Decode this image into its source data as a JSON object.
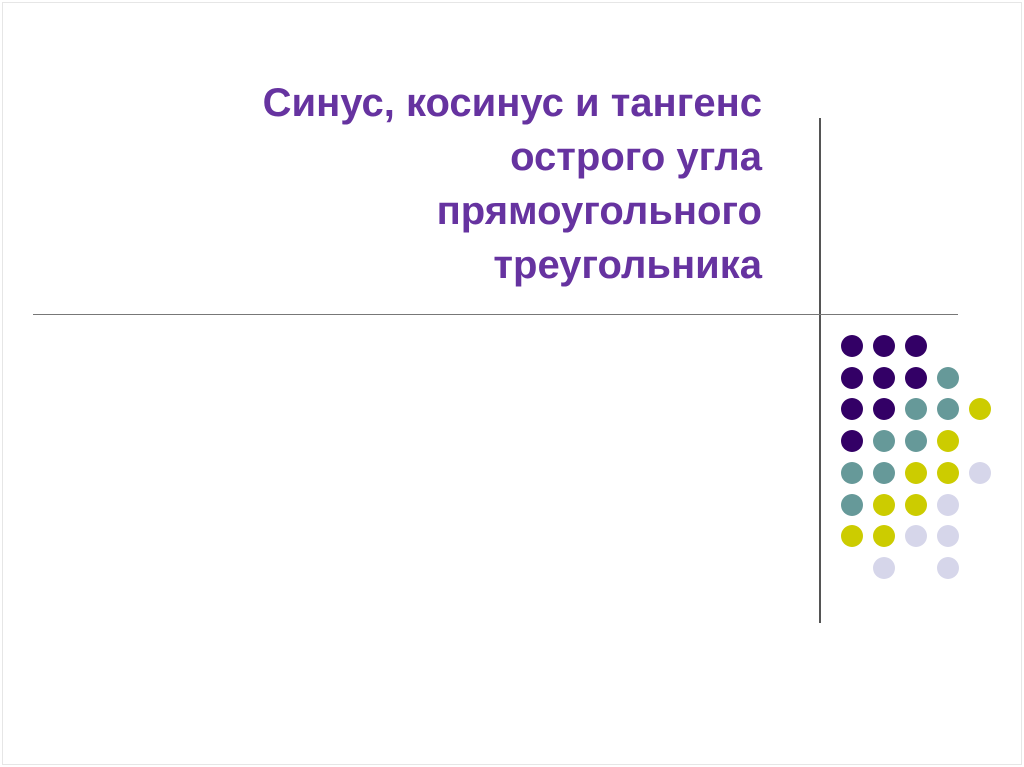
{
  "slide": {
    "title_lines": [
      "Синус, косинус и тангенс",
      "острого угла",
      "прямоугольного",
      "треугольника"
    ]
  },
  "colors": {
    "title": "#6633a0",
    "purple": "#330066",
    "teal": "#669999",
    "yellow": "#cccc00",
    "lavender": "#d6d6ea"
  },
  "dot_pattern": [
    [
      "purple",
      "purple",
      "purple",
      null,
      null
    ],
    [
      "purple",
      "purple",
      "purple",
      "teal",
      null
    ],
    [
      "purple",
      "purple",
      "teal",
      "teal",
      "yellow"
    ],
    [
      "purple",
      "teal",
      "teal",
      "yellow",
      null
    ],
    [
      "teal",
      "teal",
      "yellow",
      "yellow",
      "lavender"
    ],
    [
      "teal",
      "yellow",
      "yellow",
      "lavender",
      null
    ],
    [
      "yellow",
      "yellow",
      "lavender",
      "lavender",
      null
    ],
    [
      null,
      "lavender",
      null,
      "lavender",
      null
    ]
  ]
}
